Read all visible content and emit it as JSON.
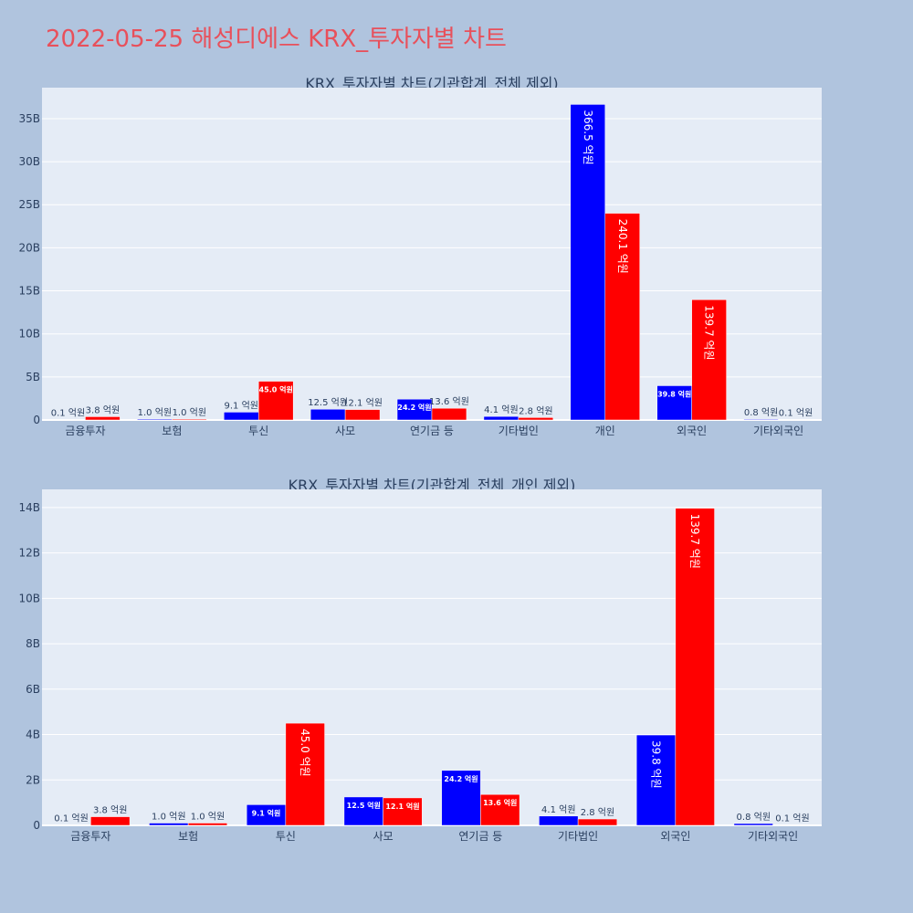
{
  "page": {
    "title": "2022-05-25 해성디에스 KRX_투자자별 차트"
  },
  "colors": {
    "buy": "#0000ff",
    "sell": "#ff0000",
    "background": "#b0c4de",
    "plot_bg": "#e5ecf6",
    "title": "#e8505b"
  },
  "chart_data": [
    {
      "type": "bar",
      "title": "KRX_투자자별 차트(기관합계_전체 제외)",
      "categories": [
        "금융투자",
        "보험",
        "투신",
        "사모",
        "연기금 등",
        "기타법인",
        "개인",
        "외국인",
        "기타외국인"
      ],
      "series": [
        {
          "values": [
            0.01,
            0.1,
            0.91,
            1.25,
            2.42,
            0.41,
            36.65,
            3.98,
            0.08
          ],
          "labels": [
            "0.1 억원",
            "1.0 억원",
            "9.1 억원",
            "12.5 억원",
            "24.2 억원",
            "4.1 억원",
            "366.5 억원",
            "39.8 억원",
            "0.8 억원"
          ]
        },
        {
          "values": [
            0.38,
            0.1,
            4.5,
            1.21,
            1.36,
            0.28,
            24.01,
            13.97,
            0.01
          ],
          "labels": [
            "3.8 억원",
            "1.0 억원",
            "45.0 억원",
            "12.1 억원",
            "13.6 억원",
            "2.8 억원",
            "240.1 억원",
            "139.7 억원",
            "0.1 억원"
          ]
        }
      ],
      "yticks": [
        "0",
        "5B",
        "10B",
        "15B",
        "20B",
        "25B",
        "30B",
        "35B"
      ],
      "ylim": [
        0,
        38.6
      ],
      "grid": true
    },
    {
      "type": "bar",
      "title": "KRX_투자자별 차트(기관합계_전체_개인 제외)",
      "categories": [
        "금융투자",
        "보험",
        "투신",
        "사모",
        "연기금 등",
        "기타법인",
        "외국인",
        "기타외국인"
      ],
      "series": [
        {
          "values": [
            0.01,
            0.1,
            0.91,
            1.25,
            2.42,
            0.41,
            3.98,
            0.08
          ],
          "labels": [
            "0.1 억원",
            "1.0 억원",
            "9.1 억원",
            "12.5 억원",
            "24.2 억원",
            "4.1 억원",
            "39.8 억원",
            "0.8 억원"
          ]
        },
        {
          "values": [
            0.38,
            0.1,
            4.5,
            1.21,
            1.36,
            0.28,
            13.97,
            0.01
          ],
          "labels": [
            "3.8 억원",
            "1.0 억원",
            "45.0 억원",
            "12.1 억원",
            "13.6 억원",
            "2.8 억원",
            "139.7 억원",
            "0.1 억원"
          ]
        }
      ],
      "yticks": [
        "0",
        "2B",
        "4B",
        "6B",
        "8B",
        "10B",
        "12B",
        "14B"
      ],
      "ylim": [
        0,
        14.8
      ],
      "grid": true
    }
  ]
}
